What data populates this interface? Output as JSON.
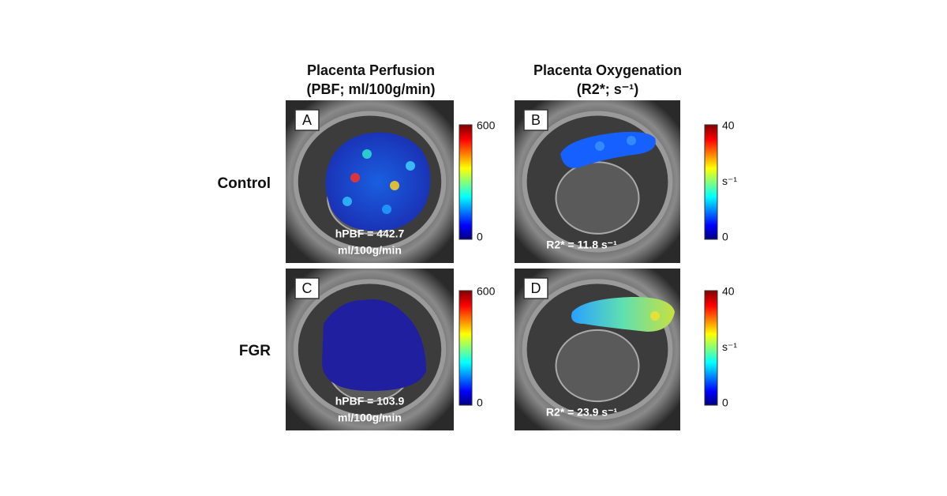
{
  "columns": [
    {
      "title": "Placenta Perfusion",
      "subtitle": "(PBF; ml/100g/min)"
    },
    {
      "title": "Placenta Oxygenation",
      "subtitle": "(R2*; s⁻¹)"
    }
  ],
  "rows": [
    {
      "label": "Control"
    },
    {
      "label": "FGR"
    }
  ],
  "panels": [
    {
      "letter": "A",
      "annotation": [
        "hPBF = 442.7",
        "ml/100g/min"
      ],
      "colorbar": {
        "max": "600",
        "min": "0"
      }
    },
    {
      "letter": "B",
      "annotation": [
        "R2* = 11.8 s⁻¹"
      ],
      "colorbar": {
        "max": "40",
        "unit": "s⁻¹",
        "min": "0"
      }
    },
    {
      "letter": "C",
      "annotation": [
        "hPBF = 103.9",
        "ml/100g/min"
      ],
      "colorbar": {
        "max": "600",
        "min": "0"
      }
    },
    {
      "letter": "D",
      "annotation": [
        "R2* = 23.9 s⁻¹"
      ],
      "colorbar": {
        "max": "40",
        "unit": "s⁻¹",
        "min": "0"
      }
    }
  ]
}
